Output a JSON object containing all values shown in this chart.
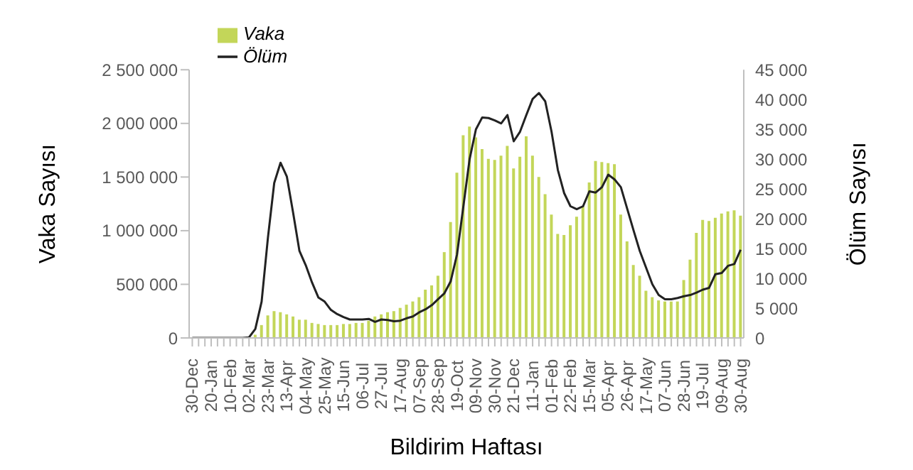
{
  "chart_data": {
    "type": "bar",
    "xlabel": "Bildirim Haftası",
    "ylabel": "Vaka Sayısı",
    "y2label": "Ölüm Sayısı",
    "legend": "top left",
    "grid": false,
    "categories": [
      "30-Dec",
      null,
      null,
      "20-Jan",
      null,
      null,
      "10-Feb",
      null,
      null,
      "02-Mar",
      null,
      null,
      "23-Mar",
      null,
      null,
      "13-Apr",
      null,
      null,
      "04-May",
      null,
      null,
      "25-May",
      null,
      null,
      "15-Jun",
      null,
      null,
      "06-Jul",
      null,
      null,
      "27-Jul",
      null,
      null,
      "17-Aug",
      null,
      null,
      "07-Sep",
      null,
      null,
      "28-Sep",
      null,
      null,
      "19-Oct",
      null,
      null,
      "09-Nov",
      null,
      null,
      "30-Nov",
      null,
      null,
      "21-Dec",
      null,
      null,
      "11-Jan",
      null,
      null,
      "01-Feb",
      null,
      null,
      "22-Feb",
      null,
      null,
      "15-Mar",
      null,
      null,
      "05-Apr",
      null,
      null,
      "26-Apr",
      null,
      null,
      "17-May",
      null,
      null,
      "07-Jun",
      null,
      null,
      "28-Jun",
      null,
      null,
      "19-Jul",
      null,
      null,
      "09-Aug",
      null,
      null,
      "30-Aug"
    ],
    "ylim": [
      0,
      2500000
    ],
    "yticks": [
      0,
      {
        "value": 500000,
        "label": "500 000"
      },
      {
        "value": 1000000,
        "label": "1 000 000"
      },
      {
        "value": 1500000,
        "label": "1 500 000"
      },
      {
        "value": 2000000,
        "label": "2 000 000"
      },
      {
        "value": 2500000,
        "label": "2 500 000"
      }
    ],
    "y2lim": [
      0,
      45000
    ],
    "y2ticks": [
      0,
      {
        "value": 5000,
        "label": "5 000"
      },
      {
        "value": 10000,
        "label": "10 000"
      },
      {
        "value": 15000,
        "label": "15 000"
      },
      {
        "value": 20000,
        "label": "20 000"
      },
      {
        "value": 25000,
        "label": "25 000"
      },
      {
        "value": 30000,
        "label": "30 000"
      },
      {
        "value": 35000,
        "label": "35 000"
      },
      {
        "value": 40000,
        "label": "40 000"
      },
      {
        "value": 45000,
        "label": "45 000"
      }
    ],
    "series": [
      {
        "name": "Vaka",
        "color": "#c3d659",
        "values": [
          0,
          0,
          0,
          0,
          0,
          0,
          0,
          0,
          0,
          0,
          30000,
          120000,
          210000,
          250000,
          240000,
          220000,
          200000,
          170000,
          170000,
          140000,
          130000,
          120000,
          120000,
          120000,
          130000,
          130000,
          140000,
          140000,
          160000,
          200000,
          220000,
          240000,
          250000,
          280000,
          310000,
          340000,
          380000,
          450000,
          490000,
          580000,
          800000,
          1080000,
          1540000,
          1890000,
          1970000,
          1870000,
          1760000,
          1670000,
          1660000,
          1700000,
          1790000,
          1580000,
          1690000,
          1880000,
          1700000,
          1500000,
          1340000,
          1150000,
          970000,
          960000,
          1050000,
          1130000,
          1230000,
          1450000,
          1650000,
          1640000,
          1630000,
          1620000,
          1150000,
          900000,
          680000,
          580000,
          440000,
          380000,
          350000,
          340000,
          340000,
          340000,
          540000,
          730000,
          980000,
          1100000,
          1090000,
          1120000,
          1160000,
          1180000,
          1190000,
          1140000
        ]
      },
      {
        "name": "Ölüm",
        "type": "line",
        "axis": "y2",
        "color": "#222222",
        "values": [
          0,
          0,
          0,
          0,
          0,
          0,
          0,
          0,
          0,
          100,
          1500,
          6100,
          16800,
          26000,
          29400,
          27100,
          21000,
          14600,
          12200,
          9300,
          6800,
          6100,
          4700,
          4000,
          3500,
          3100,
          3100,
          3100,
          3200,
          2700,
          3100,
          3000,
          2800,
          2900,
          3300,
          3600,
          4300,
          4800,
          5500,
          6500,
          7500,
          9500,
          14000,
          22000,
          30000,
          35000,
          37000,
          36900,
          36500,
          36000,
          37400,
          33000,
          34600,
          37400,
          40100,
          41100,
          39700,
          34600,
          28200,
          24300,
          22100,
          21600,
          22100,
          24600,
          24400,
          25300,
          27400,
          26600,
          25300,
          21700,
          18100,
          14600,
          11800,
          9000,
          7200,
          6500,
          6500,
          6700,
          7000,
          7200,
          7600,
          8100,
          8400,
          10700,
          10900,
          12100,
          12400,
          14800
        ]
      }
    ]
  }
}
